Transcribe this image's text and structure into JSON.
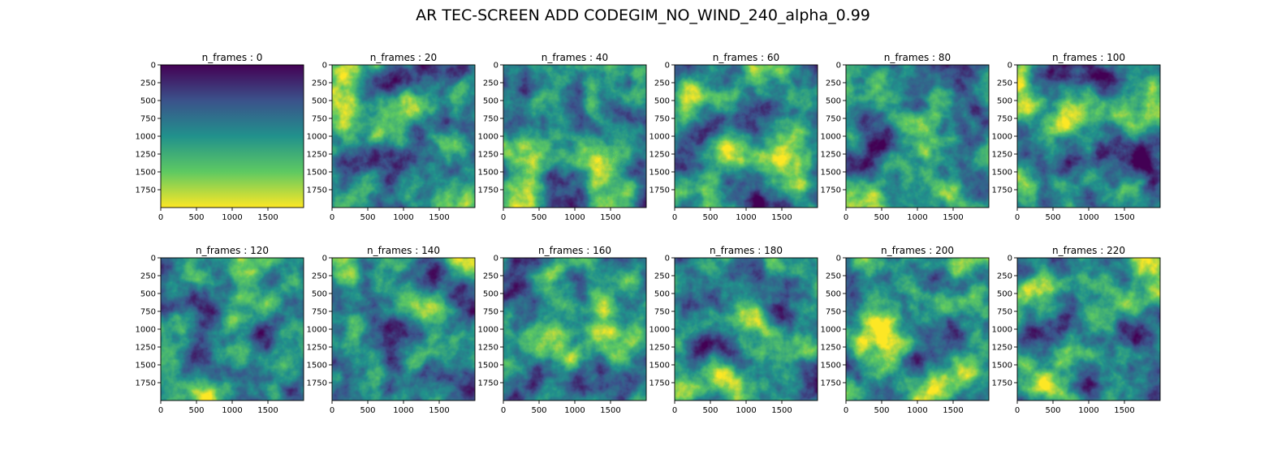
{
  "figure": {
    "title": "AR TEC-SCREEN ADD CODEGIM_NO_WIND_240_alpha_0.99"
  },
  "colormap": "viridis",
  "chart_data": {
    "type": "heatmap",
    "grid": false,
    "x_ticks": [
      0,
      500,
      1000,
      1500
    ],
    "y_ticks": [
      0,
      250,
      500,
      750,
      1000,
      1250,
      1500,
      1750
    ],
    "x_range": [
      0,
      2000
    ],
    "y_range": [
      2000,
      0
    ],
    "panels": [
      {
        "title": "n_frames : 0",
        "n_frames": 0
      },
      {
        "title": "n_frames : 20",
        "n_frames": 20
      },
      {
        "title": "n_frames : 40",
        "n_frames": 40
      },
      {
        "title": "n_frames : 60",
        "n_frames": 60
      },
      {
        "title": "n_frames : 80",
        "n_frames": 80
      },
      {
        "title": "n_frames : 100",
        "n_frames": 100
      },
      {
        "title": "n_frames : 120",
        "n_frames": 120
      },
      {
        "title": "n_frames : 140",
        "n_frames": 140
      },
      {
        "title": "n_frames : 160",
        "n_frames": 160
      },
      {
        "title": "n_frames : 180",
        "n_frames": 180
      },
      {
        "title": "n_frames : 200",
        "n_frames": 200
      },
      {
        "title": "n_frames : 220",
        "n_frames": 220
      }
    ]
  }
}
